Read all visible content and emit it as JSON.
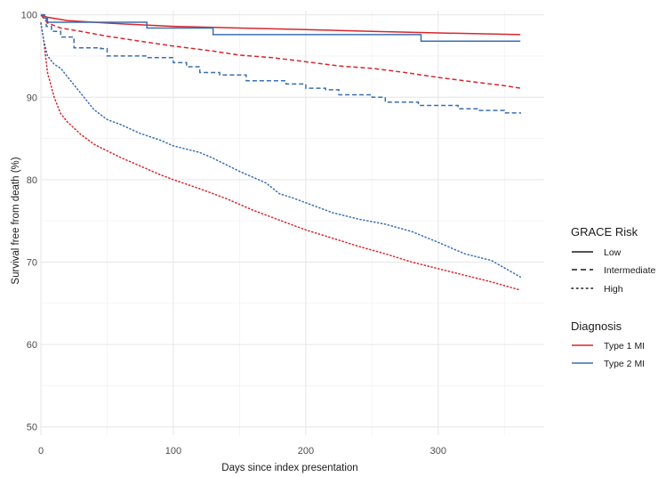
{
  "chart_data": {
    "type": "line",
    "xlabel": "Days since index presentation",
    "ylabel": "Survival free from death (%)",
    "xlim": [
      0,
      380
    ],
    "ylim": [
      49,
      100.5
    ],
    "xticks": [
      0,
      100,
      200,
      300
    ],
    "yticks": [
      50,
      60,
      70,
      80,
      90,
      100
    ],
    "grid": true,
    "legend_placement": "right",
    "legends": [
      {
        "title": "GRACE Risk",
        "entries": [
          {
            "label": "Low",
            "linetype": "solid"
          },
          {
            "label": "Intermediate",
            "linetype": "dashed"
          },
          {
            "label": "High",
            "linetype": "dotted"
          }
        ]
      },
      {
        "title": "Diagnosis",
        "entries": [
          {
            "label": "Type 1 MI",
            "color": "#d7262e"
          },
          {
            "label": "Type 2 MI",
            "color": "#3a6fb0"
          }
        ]
      }
    ],
    "series": [
      {
        "risk": "Low",
        "diagnosis": "Type 1 MI",
        "color": "#d7262e",
        "linetype": "solid",
        "step": false,
        "points": [
          [
            0,
            100
          ],
          [
            5,
            99.7
          ],
          [
            20,
            99.3
          ],
          [
            40,
            99.1
          ],
          [
            60,
            98.9
          ],
          [
            100,
            98.6
          ],
          [
            150,
            98.4
          ],
          [
            200,
            98.2
          ],
          [
            250,
            98.0
          ],
          [
            300,
            97.8
          ],
          [
            330,
            97.7
          ],
          [
            362,
            97.6
          ]
        ]
      },
      {
        "risk": "Low",
        "diagnosis": "Type 2 MI",
        "color": "#3a6fb0",
        "linetype": "solid",
        "step": true,
        "points": [
          [
            0,
            100
          ],
          [
            2,
            99.6
          ],
          [
            5,
            99.1
          ],
          [
            80,
            98.4
          ],
          [
            130,
            97.6
          ],
          [
            287,
            96.8
          ],
          [
            362,
            96.8
          ]
        ]
      },
      {
        "risk": "Intermediate",
        "diagnosis": "Type 1 MI",
        "color": "#d7262e",
        "linetype": "dashed",
        "step": false,
        "points": [
          [
            0,
            100
          ],
          [
            5,
            99.0
          ],
          [
            15,
            98.4
          ],
          [
            30,
            98.0
          ],
          [
            50,
            97.4
          ],
          [
            75,
            96.8
          ],
          [
            100,
            96.2
          ],
          [
            130,
            95.6
          ],
          [
            150,
            95.1
          ],
          [
            175,
            94.8
          ],
          [
            200,
            94.3
          ],
          [
            225,
            93.8
          ],
          [
            250,
            93.5
          ],
          [
            275,
            93.0
          ],
          [
            300,
            92.4
          ],
          [
            325,
            91.9
          ],
          [
            350,
            91.4
          ],
          [
            362,
            91.1
          ]
        ]
      },
      {
        "risk": "Intermediate",
        "diagnosis": "Type 2 MI",
        "color": "#3a6fb0",
        "linetype": "dashed",
        "step": true,
        "points": [
          [
            0,
            100
          ],
          [
            4,
            98.6
          ],
          [
            8,
            98.0
          ],
          [
            15,
            97.3
          ],
          [
            25,
            96.0
          ],
          [
            45,
            95.9
          ],
          [
            50,
            95.0
          ],
          [
            80,
            94.8
          ],
          [
            100,
            94.2
          ],
          [
            110,
            93.7
          ],
          [
            120,
            93.0
          ],
          [
            135,
            92.7
          ],
          [
            155,
            92.0
          ],
          [
            185,
            91.6
          ],
          [
            200,
            91.1
          ],
          [
            215,
            90.9
          ],
          [
            225,
            90.3
          ],
          [
            250,
            90.0
          ],
          [
            260,
            89.4
          ],
          [
            285,
            89.0
          ],
          [
            315,
            88.6
          ],
          [
            330,
            88.4
          ],
          [
            350,
            88.1
          ],
          [
            362,
            88.0
          ]
        ]
      },
      {
        "risk": "High",
        "diagnosis": "Type 1 MI",
        "color": "#d7262e",
        "linetype": "dotted",
        "step": false,
        "points": [
          [
            0,
            99
          ],
          [
            2,
            97
          ],
          [
            5,
            93
          ],
          [
            10,
            90
          ],
          [
            15,
            88
          ],
          [
            20,
            87
          ],
          [
            30,
            85.5
          ],
          [
            40,
            84.3
          ],
          [
            50,
            83.5
          ],
          [
            60,
            82.7
          ],
          [
            70,
            82.0
          ],
          [
            80,
            81.3
          ],
          [
            90,
            80.6
          ],
          [
            100,
            80.0
          ],
          [
            120,
            78.9
          ],
          [
            140,
            77.7
          ],
          [
            160,
            76.3
          ],
          [
            180,
            75.1
          ],
          [
            200,
            73.9
          ],
          [
            220,
            72.9
          ],
          [
            240,
            71.9
          ],
          [
            260,
            71.0
          ],
          [
            280,
            70.0
          ],
          [
            300,
            69.2
          ],
          [
            320,
            68.4
          ],
          [
            340,
            67.6
          ],
          [
            362,
            66.6
          ]
        ]
      },
      {
        "risk": "High",
        "diagnosis": "Type 2 MI",
        "color": "#3a6fb0",
        "linetype": "dotted",
        "step": false,
        "points": [
          [
            0,
            99
          ],
          [
            2,
            97
          ],
          [
            5,
            95
          ],
          [
            10,
            94
          ],
          [
            15,
            93.5
          ],
          [
            20,
            92.5
          ],
          [
            30,
            90.5
          ],
          [
            40,
            88.5
          ],
          [
            50,
            87.3
          ],
          [
            60,
            86.7
          ],
          [
            75,
            85.6
          ],
          [
            90,
            84.8
          ],
          [
            100,
            84.1
          ],
          [
            110,
            83.7
          ],
          [
            120,
            83.3
          ],
          [
            130,
            82.6
          ],
          [
            150,
            81.0
          ],
          [
            170,
            79.6
          ],
          [
            180,
            78.3
          ],
          [
            190,
            77.8
          ],
          [
            200,
            77.2
          ],
          [
            220,
            76.0
          ],
          [
            240,
            75.2
          ],
          [
            260,
            74.6
          ],
          [
            280,
            73.7
          ],
          [
            300,
            72.4
          ],
          [
            320,
            71.0
          ],
          [
            340,
            70.2
          ],
          [
            362,
            68.2
          ]
        ]
      }
    ]
  }
}
